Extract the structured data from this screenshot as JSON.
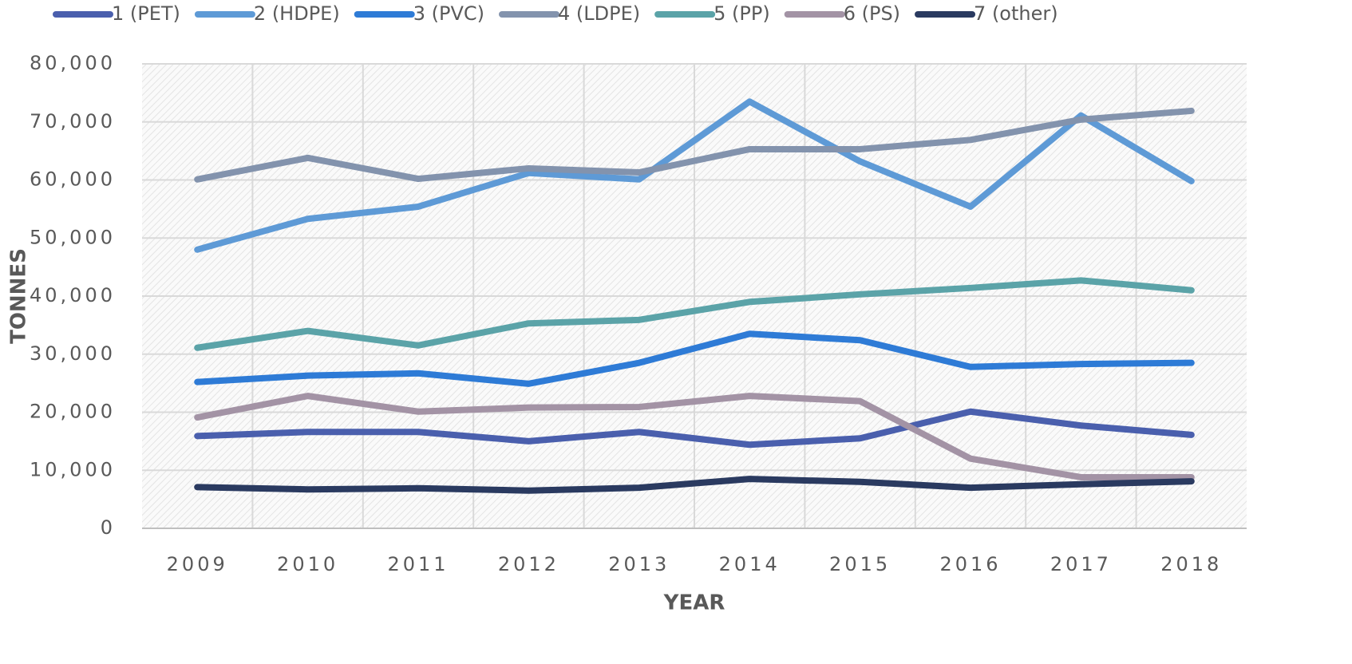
{
  "chart_data": {
    "type": "line",
    "xlabel": "YEAR",
    "ylabel": "TONNES",
    "categories": [
      "2009",
      "2010",
      "2011",
      "2012",
      "2013",
      "2014",
      "2015",
      "2016",
      "2017",
      "2018"
    ],
    "series": [
      {
        "name": "1 (PET)",
        "color": "#4a5fad",
        "values": [
          15900,
          16600,
          16600,
          15000,
          16600,
          14400,
          15500,
          20100,
          17700,
          16100
        ]
      },
      {
        "name": "2 (HDPE)",
        "color": "#5e9ad6",
        "values": [
          48000,
          53300,
          55400,
          61200,
          60100,
          73500,
          63200,
          55400,
          71100,
          59800
        ]
      },
      {
        "name": "3 (PVC)",
        "color": "#2e7bd6",
        "values": [
          25200,
          26300,
          26700,
          24900,
          28500,
          33500,
          32400,
          27800,
          28300,
          28500
        ]
      },
      {
        "name": "4 (LDPE)",
        "color": "#8393ad",
        "values": [
          60100,
          63800,
          60200,
          62000,
          61300,
          65300,
          65300,
          66900,
          70400,
          71900
        ]
      },
      {
        "name": "5 (PP)",
        "color": "#5ba3a8",
        "values": [
          31100,
          34000,
          31500,
          35300,
          35900,
          39000,
          40300,
          41400,
          42700,
          41000
        ]
      },
      {
        "name": "6 (PS)",
        "color": "#a393a5",
        "values": [
          19100,
          22800,
          20100,
          20800,
          20900,
          22800,
          21900,
          12000,
          8800,
          8800
        ]
      },
      {
        "name": "7 (other)",
        "color": "#2a3a60",
        "values": [
          7100,
          6700,
          6900,
          6500,
          7000,
          8500,
          8000,
          7000,
          7600,
          8100
        ]
      }
    ],
    "ylim": [
      0,
      80000
    ],
    "yticks": [
      0,
      {
        "value": 10000,
        "label": "10,000"
      },
      {
        "value": 20000,
        "label": "20,000"
      },
      {
        "value": 30000,
        "label": "30,000"
      },
      {
        "value": 40000,
        "label": "40,000"
      },
      {
        "value": 50000,
        "label": "50,000"
      },
      {
        "value": 60000,
        "label": "60,000"
      },
      {
        "value": 70000,
        "label": "70,000"
      },
      {
        "value": 80000,
        "label": "80,000"
      }
    ],
    "grid": true,
    "legend": "top"
  }
}
